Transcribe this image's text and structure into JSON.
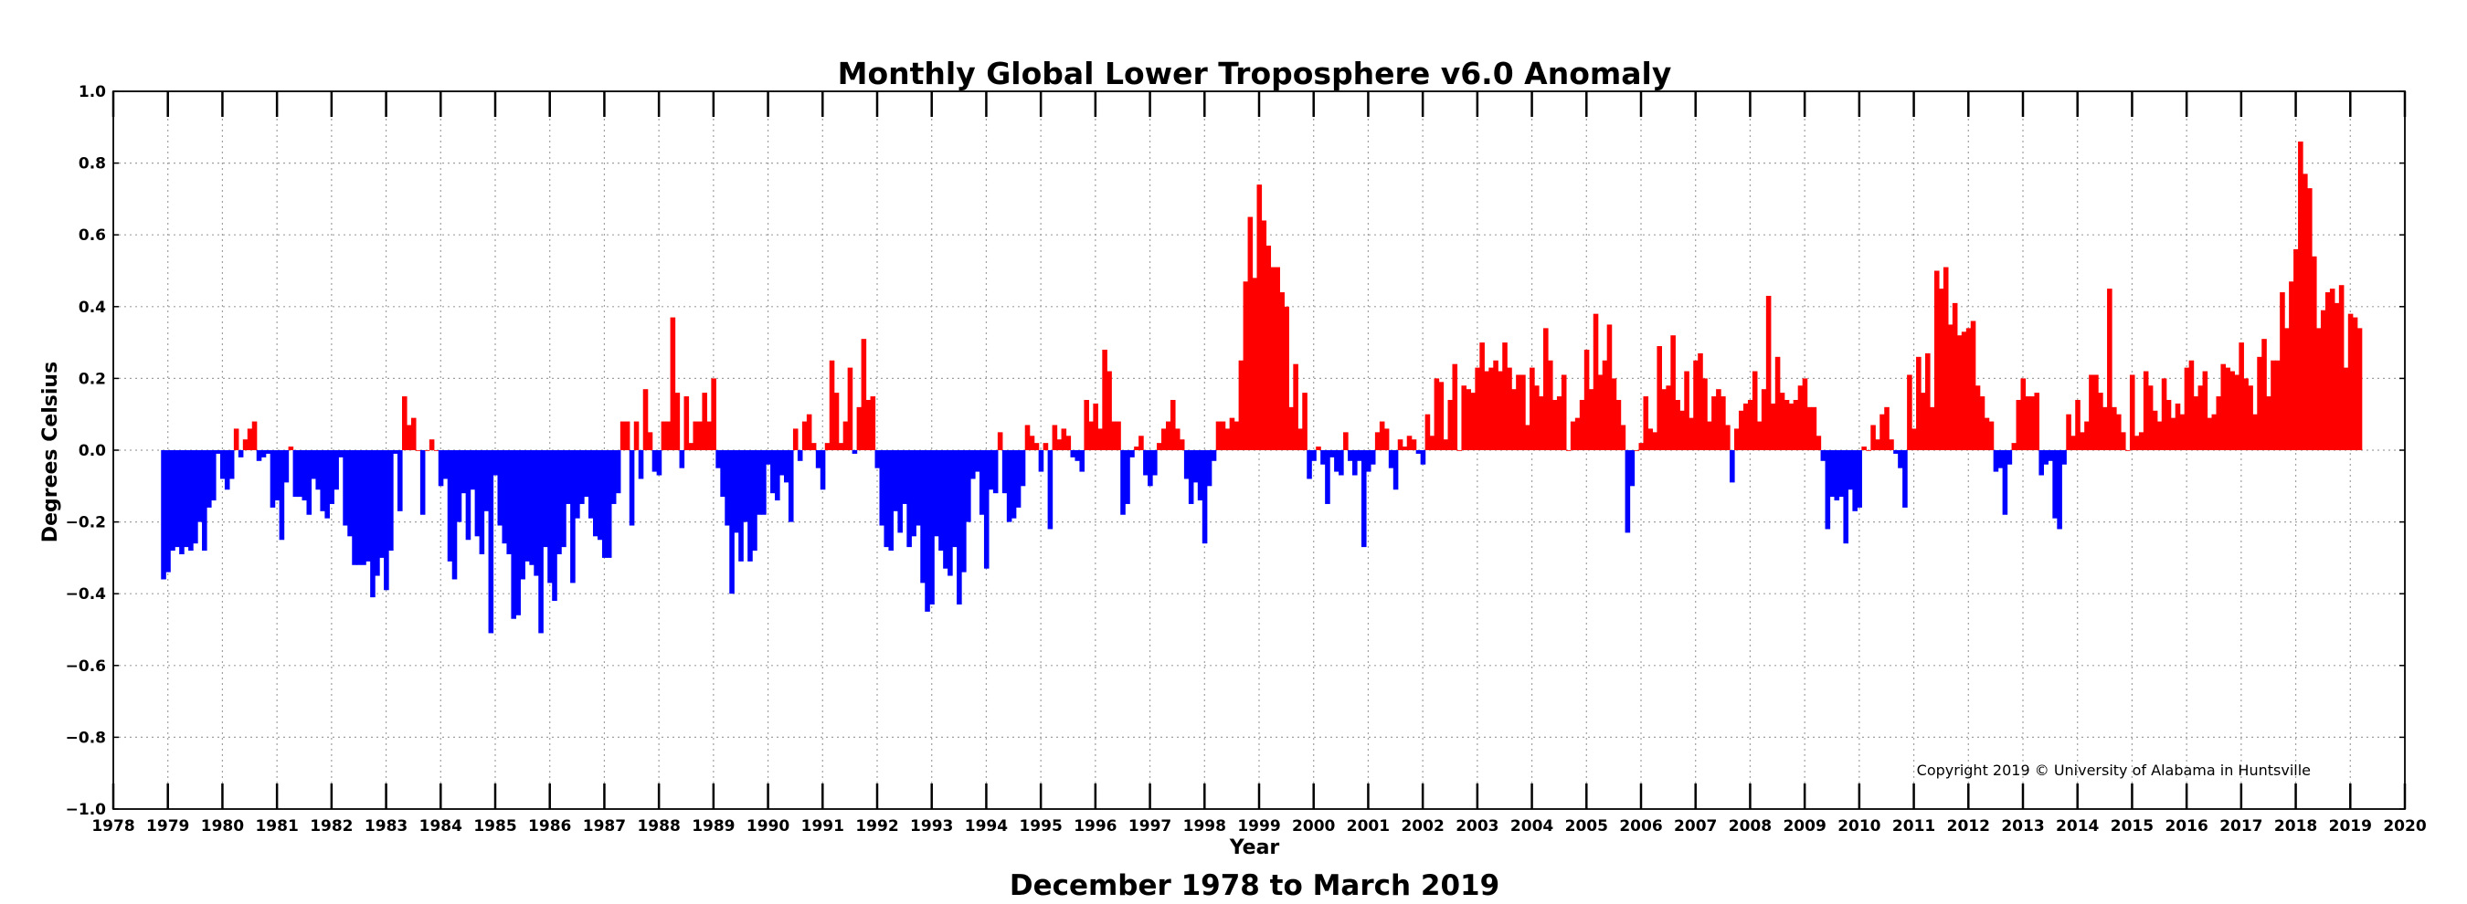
{
  "chart_data": {
    "type": "bar",
    "title": "Monthly Global Lower Troposphere v6.0 Anomaly",
    "subtitle": "December 1978 to March 2019",
    "xlabel": "Year",
    "ylabel": "Degrees Celsius",
    "copyright": "Copyright 2019 © University of Alabama in Huntsville",
    "xlim": [
      1978,
      2020
    ],
    "ylim": [
      -1.0,
      1.0
    ],
    "grid": true,
    "x_ticks": [
      "1978",
      "1979",
      "1980",
      "1981",
      "1982",
      "1983",
      "1984",
      "1985",
      "1986",
      "1987",
      "1988",
      "1989",
      "1990",
      "1991",
      "1992",
      "1993",
      "1994",
      "1995",
      "1996",
      "1997",
      "1998",
      "1999",
      "2000",
      "2001",
      "2002",
      "2003",
      "2004",
      "2005",
      "2006",
      "2007",
      "2008",
      "2009",
      "2010",
      "2011",
      "2012",
      "2013",
      "2014",
      "2015",
      "2016",
      "2017",
      "2018",
      "2019",
      "2020"
    ],
    "y_ticks": [
      "1.0",
      "0.8",
      "0.6",
      "0.4",
      "0.2",
      "0.0",
      "−0.2",
      "−0.4",
      "−0.6",
      "−0.8",
      "−1.0"
    ],
    "colors": {
      "positive": "#ff0000",
      "negative": "#0000ff"
    },
    "start": "1978-12",
    "end": "2019-03",
    "yearly_values": [
      {
        "year": 1978,
        "values": [
          -0.36
        ]
      },
      {
        "year": 1979,
        "values": [
          -0.34,
          -0.28,
          -0.27,
          -0.29,
          -0.27,
          -0.28,
          -0.26,
          -0.2,
          -0.28,
          -0.16,
          -0.14,
          -0.01
        ]
      },
      {
        "year": 1980,
        "values": [
          -0.08,
          -0.11,
          -0.08,
          0.06,
          -0.02,
          0.03,
          0.06,
          0.08,
          -0.03,
          -0.02,
          -0.01,
          -0.16
        ]
      },
      {
        "year": 1981,
        "values": [
          -0.14,
          -0.25,
          -0.09,
          0.01,
          -0.13,
          -0.13,
          -0.14,
          -0.18,
          -0.08,
          -0.11,
          -0.17,
          -0.19
        ]
      },
      {
        "year": 1982,
        "values": [
          -0.15,
          -0.11,
          -0.02,
          -0.21,
          -0.24,
          -0.32,
          -0.32,
          -0.32,
          -0.31,
          -0.41,
          -0.35,
          -0.3
        ]
      },
      {
        "year": 1983,
        "values": [
          -0.39,
          -0.28,
          -0.01,
          -0.17,
          0.15,
          0.07,
          0.09,
          0.0,
          -0.18,
          0.0,
          0.03,
          0.0
        ]
      },
      {
        "year": 1984,
        "values": [
          -0.1,
          -0.08,
          -0.31,
          -0.36,
          -0.2,
          -0.12,
          -0.25,
          -0.11,
          -0.24,
          -0.29,
          -0.17,
          -0.51
        ]
      },
      {
        "year": 1985,
        "values": [
          -0.07,
          -0.21,
          -0.26,
          -0.29,
          -0.47,
          -0.46,
          -0.36,
          -0.31,
          -0.32,
          -0.35,
          -0.51,
          -0.27
        ]
      },
      {
        "year": 1986,
        "values": [
          -0.37,
          -0.42,
          -0.29,
          -0.27,
          -0.15,
          -0.37,
          -0.19,
          -0.15,
          -0.13,
          -0.19,
          -0.24,
          -0.25
        ]
      },
      {
        "year": 1987,
        "values": [
          -0.3,
          -0.3,
          -0.15,
          -0.12,
          0.08,
          0.08,
          -0.21,
          0.08,
          -0.08,
          0.17,
          0.05,
          -0.06
        ]
      },
      {
        "year": 1988,
        "values": [
          -0.07,
          0.08,
          0.08,
          0.37,
          0.16,
          -0.05,
          0.15,
          0.02,
          0.08,
          0.08,
          0.16,
          0.08
        ]
      },
      {
        "year": 1989,
        "values": [
          0.2,
          -0.05,
          -0.13,
          -0.21,
          -0.4,
          -0.23,
          -0.31,
          -0.2,
          -0.31,
          -0.28,
          -0.18,
          -0.18
        ]
      },
      {
        "year": 1990,
        "values": [
          -0.04,
          -0.12,
          -0.14,
          -0.07,
          -0.09,
          -0.2,
          0.06,
          -0.03,
          0.08,
          0.1,
          0.02,
          -0.05
        ]
      },
      {
        "year": 1991,
        "values": [
          -0.11,
          0.02,
          0.25,
          0.16,
          0.02,
          0.08,
          0.23,
          -0.01,
          0.12,
          0.31,
          0.14,
          0.15
        ]
      },
      {
        "year": 1992,
        "values": [
          -0.05,
          -0.21,
          -0.27,
          -0.28,
          -0.17,
          -0.23,
          -0.15,
          -0.27,
          -0.24,
          -0.21,
          -0.37,
          -0.45
        ]
      },
      {
        "year": 1993,
        "values": [
          -0.43,
          -0.24,
          -0.28,
          -0.33,
          -0.35,
          -0.27,
          -0.43,
          -0.34,
          -0.2,
          -0.08,
          -0.06,
          -0.18
        ]
      },
      {
        "year": 1994,
        "values": [
          -0.33,
          -0.11,
          -0.12,
          0.05,
          -0.12,
          -0.2,
          -0.19,
          -0.16,
          -0.1,
          0.07,
          0.04,
          0.02
        ]
      },
      {
        "year": 1995,
        "values": [
          -0.06,
          0.02,
          -0.22,
          0.07,
          0.03,
          0.06,
          0.04,
          -0.02,
          -0.03,
          -0.06,
          0.14,
          0.08
        ]
      },
      {
        "year": 1996,
        "values": [
          0.13,
          0.06,
          0.28,
          0.22,
          0.08,
          0.08,
          -0.18,
          -0.15,
          -0.02,
          0.01,
          0.04,
          -0.07
        ]
      },
      {
        "year": 1997,
        "values": [
          -0.1,
          -0.07,
          0.02,
          0.06,
          0.08,
          0.14,
          0.06,
          0.03,
          -0.08,
          -0.15,
          -0.09,
          -0.14
        ]
      },
      {
        "year": 1998,
        "values": [
          -0.26,
          -0.1,
          -0.03,
          0.08,
          0.08,
          0.06,
          0.09,
          0.08,
          0.25,
          0.47,
          0.65,
          0.48
        ]
      },
      {
        "year": 1999,
        "values": [
          0.74,
          0.64,
          0.57,
          0.51,
          0.51,
          0.44,
          0.4,
          0.12,
          0.24,
          0.06,
          0.16,
          -0.08
        ]
      },
      {
        "year": 2000,
        "values": [
          -0.03,
          0.01,
          -0.04,
          -0.15,
          -0.02,
          -0.06,
          -0.07,
          0.05,
          -0.03,
          -0.07,
          -0.03,
          -0.27
        ]
      },
      {
        "year": 2001,
        "values": [
          -0.06,
          -0.04,
          0.05,
          0.08,
          0.06,
          -0.05,
          -0.11,
          0.03,
          0.01,
          0.04,
          0.03,
          -0.01
        ]
      },
      {
        "year": 2002,
        "values": [
          -0.04,
          0.1,
          0.04,
          0.2,
          0.19,
          0.03,
          0.14,
          0.24,
          0.0,
          0.18,
          0.17,
          0.16
        ]
      },
      {
        "year": 2003,
        "values": [
          0.23,
          0.3,
          0.22,
          0.23,
          0.25,
          0.22,
          0.3,
          0.23,
          0.17,
          0.21,
          0.21,
          0.07
        ]
      },
      {
        "year": 2004,
        "values": [
          0.23,
          0.18,
          0.15,
          0.34,
          0.25,
          0.14,
          0.15,
          0.21,
          0.0,
          0.08,
          0.09,
          0.14
        ]
      },
      {
        "year": 2005,
        "values": [
          0.28,
          0.17,
          0.38,
          0.21,
          0.25,
          0.35,
          0.2,
          0.14,
          0.07,
          -0.23,
          -0.1,
          0.0
        ]
      },
      {
        "year": 2006,
        "values": [
          0.02,
          0.15,
          0.06,
          0.05,
          0.29,
          0.17,
          0.18,
          0.32,
          0.14,
          0.11,
          0.22,
          0.09
        ]
      },
      {
        "year": 2007,
        "values": [
          0.25,
          0.27,
          0.2,
          0.08,
          0.15,
          0.17,
          0.15,
          0.07,
          -0.09,
          0.06,
          0.11,
          0.13
        ]
      },
      {
        "year": 2008,
        "values": [
          0.14,
          0.22,
          0.08,
          0.17,
          0.43,
          0.13,
          0.26,
          0.16,
          0.14,
          0.13,
          0.14,
          0.18
        ]
      },
      {
        "year": 2009,
        "values": [
          0.2,
          0.12,
          0.12,
          0.04,
          -0.03,
          -0.22,
          -0.13,
          -0.14,
          -0.13,
          -0.26,
          -0.11,
          -0.17
        ]
      },
      {
        "year": 2010,
        "values": [
          -0.16,
          0.01,
          0.0,
          0.07,
          0.03,
          0.1,
          0.12,
          0.03,
          -0.01,
          -0.05,
          -0.16,
          0.21
        ]
      },
      {
        "year": 2011,
        "values": [
          0.06,
          0.26,
          0.16,
          0.27,
          0.12,
          0.5,
          0.45,
          0.51,
          0.35,
          0.41,
          0.32,
          0.33
        ]
      },
      {
        "year": 2012,
        "values": [
          0.34,
          0.36,
          0.18,
          0.15,
          0.09,
          0.08,
          -0.06,
          -0.05,
          -0.18,
          -0.04,
          0.02,
          0.14
        ]
      },
      {
        "year": 2013,
        "values": [
          0.2,
          0.15,
          0.15,
          0.16,
          -0.07,
          -0.04,
          -0.03,
          -0.19,
          -0.22,
          -0.04,
          0.1,
          0.04
        ]
      },
      {
        "year": 2014,
        "values": [
          0.14,
          0.05,
          0.08,
          0.21,
          0.21,
          0.16,
          0.12,
          0.45,
          0.12,
          0.1,
          0.05,
          0.0
        ]
      },
      {
        "year": 2015,
        "values": [
          0.21,
          0.04,
          0.05,
          0.22,
          0.18,
          0.11,
          0.08,
          0.2,
          0.14,
          0.09,
          0.13,
          0.1
        ]
      },
      {
        "year": 2016,
        "values": [
          0.23,
          0.25,
          0.15,
          0.18,
          0.22,
          0.09,
          0.1,
          0.15,
          0.24,
          0.23,
          0.22,
          0.21
        ]
      },
      {
        "year": 2017,
        "values": [
          0.3,
          0.2,
          0.18,
          0.1,
          0.26,
          0.31,
          0.15,
          0.25,
          0.25,
          0.44,
          0.34,
          0.47
        ]
      },
      {
        "year": 2018,
        "values": [
          0.56,
          0.86,
          0.77,
          0.73,
          0.54,
          0.34,
          0.39,
          0.44,
          0.45,
          0.41,
          0.46,
          0.23
        ]
      },
      {
        "year": 2019,
        "values": [
          0.38,
          0.37,
          0.34
        ]
      }
    ]
  }
}
